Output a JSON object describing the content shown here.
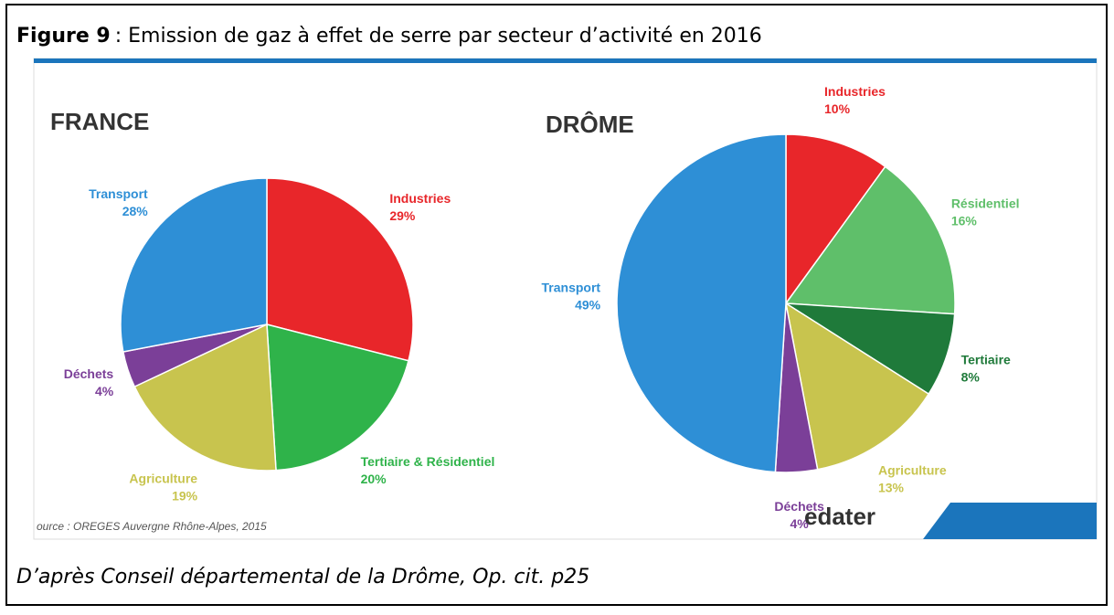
{
  "header": {
    "figure": "Figure 9",
    "title": ": Emission de gaz à effet de serre par secteur d’activité en 2016"
  },
  "chart_data": [
    {
      "type": "pie",
      "title": "FRANCE",
      "categories": [
        "Industries",
        "Tertiaire & Résidentiel",
        "Agriculture",
        "Déchets",
        "Transport"
      ],
      "values": [
        29,
        20,
        19,
        4,
        28
      ],
      "value_labels": [
        "29%",
        "20%",
        "19%",
        "4%",
        "28%"
      ],
      "colors": [
        "#e8262a",
        "#2fb34a",
        "#c8c44e",
        "#7b3f98",
        "#2e8fd6"
      ]
    },
    {
      "type": "pie",
      "title": "DRÔME",
      "categories": [
        "Industries",
        "Résidentiel",
        "Tertiaire",
        "Agriculture",
        "Déchets",
        "Transport"
      ],
      "values": [
        10,
        16,
        8,
        13,
        4,
        49
      ],
      "value_labels": [
        "10%",
        "16%",
        "8%",
        "13%",
        "4%",
        "49%"
      ],
      "colors": [
        "#e8262a",
        "#5fbf6a",
        "#1f7a3a",
        "#c8c44e",
        "#7b3f98",
        "#2e8fd6"
      ]
    }
  ],
  "source": "ource : OREGES Auvergne Rhône-Alpes, 2015",
  "logo": "edater",
  "caption": "D’après Conseil départemental de la Drôme, Op. cit. p25"
}
